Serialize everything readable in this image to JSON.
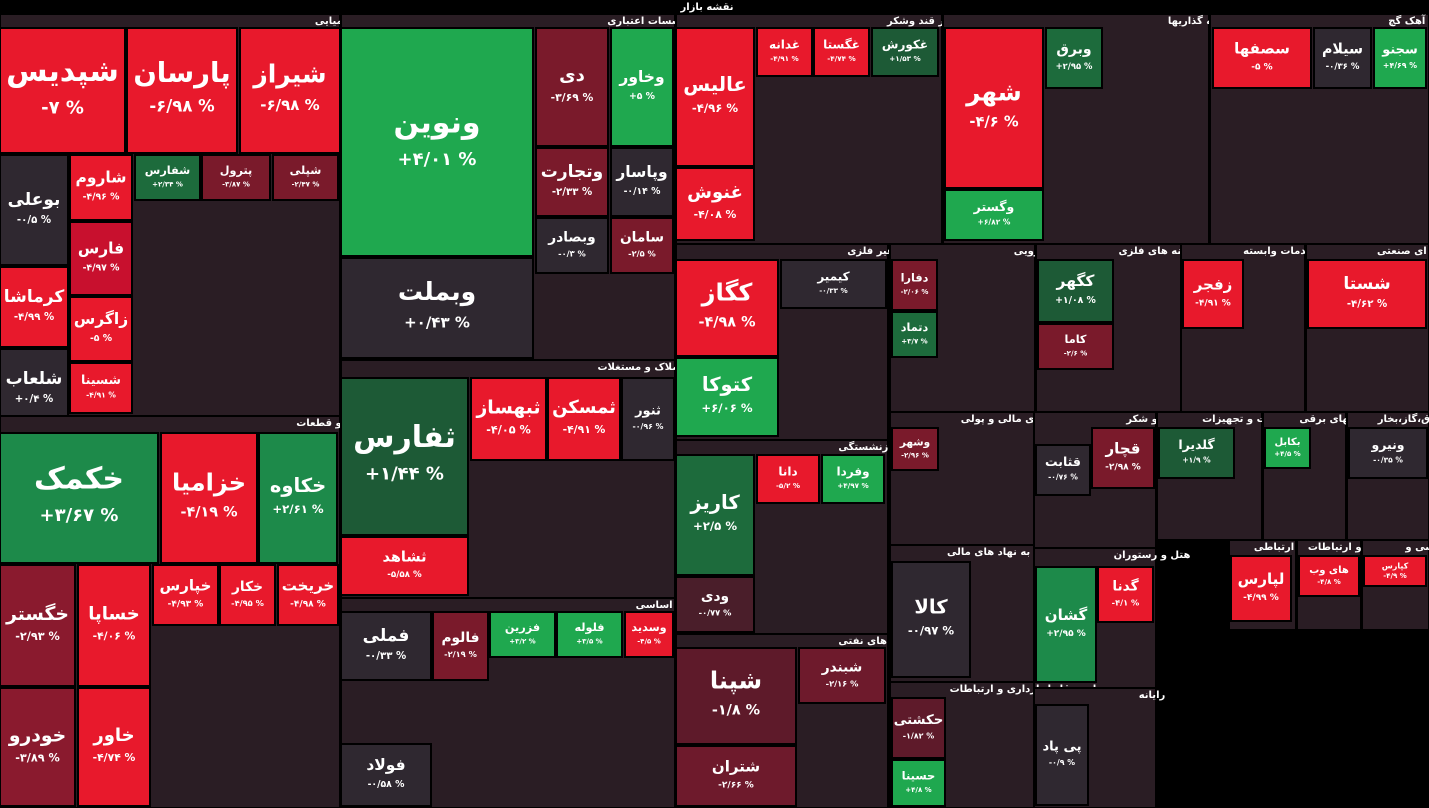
{
  "chart_data": {
    "type": "treemap",
    "title": "نقشه بازار",
    "sectors": [
      {
        "name": "شیمیایی",
        "tiles": [
          {
            "name": "شپدیس",
            "value": -7,
            "value_label": "-۷ %",
            "color": "#e8192c"
          },
          {
            "name": "پارسان",
            "value": -6.98,
            "value_label": "-۶/۹۸ %",
            "color": "#e8192c"
          },
          {
            "name": "شیراز",
            "value": -6.98,
            "value_label": "-۶/۹۸ %",
            "color": "#e8192c"
          },
          {
            "name": "بوعلی",
            "value": -0.5,
            "value_label": "-۰/۵ %",
            "color": "#2f2830"
          },
          {
            "name": "شاروم",
            "value": -4.96,
            "value_label": "-۴/۹۶ %",
            "color": "#e8192c"
          },
          {
            "name": "شفارس",
            "value": 2.34,
            "value_label": "+۲/۳۴ %",
            "color": "#1d6b3c"
          },
          {
            "name": "پترول",
            "value": -3.87,
            "value_label": "-۳/۸۷ %",
            "color": "#7a1a2b"
          },
          {
            "name": "شپلی",
            "value": -2.47,
            "value_label": "-۲/۴۷ %",
            "color": "#7a1a2b"
          },
          {
            "name": "فارس",
            "value": -4.97,
            "value_label": "-۴/۹۷ %",
            "color": "#c8102e"
          },
          {
            "name": "کرماشا",
            "value": -4.99,
            "value_label": "-۴/۹۹ %",
            "color": "#e8192c"
          },
          {
            "name": "شلعاب",
            "value": 0.4,
            "value_label": "+۰/۴ %",
            "color": "#2f2830"
          },
          {
            "name": "زاگرس",
            "value": -5,
            "value_label": "-۵ %",
            "color": "#e8192c"
          },
          {
            "name": "شسینا",
            "value": -4.91,
            "value_label": "-۴/۹۱ %",
            "color": "#e8192c"
          }
        ]
      },
      {
        "name": "خودرو و قطعات",
        "tiles": [
          {
            "name": "خکمک",
            "value": 3.67,
            "value_label": "+۳/۶۷ %",
            "color": "#1d8a4a"
          },
          {
            "name": "خزامیا",
            "value": -4.19,
            "value_label": "-۴/۱۹ %",
            "color": "#e8192c"
          },
          {
            "name": "خکاوه",
            "value": 2.61,
            "value_label": "+۲/۶۱ %",
            "color": "#1d8a4a"
          },
          {
            "name": "خگستر",
            "value": -2.93,
            "value_label": "-۲/۹۳ %",
            "color": "#8a1a2e"
          },
          {
            "name": "خساپا",
            "value": -4.06,
            "value_label": "-۴/۰۶ %",
            "color": "#e8192c"
          },
          {
            "name": "خودرو",
            "value": -3.89,
            "value_label": "-۳/۸۹ %",
            "color": "#8a1a2e"
          },
          {
            "name": "خاور",
            "value": -4.74,
            "value_label": "-۴/۷۴ %",
            "color": "#e8192c"
          },
          {
            "name": "خپارس",
            "value": -4.93,
            "value_label": "-۴/۹۳ %",
            "color": "#e8192c"
          },
          {
            "name": "خکار",
            "value": -4.95,
            "value_label": "-۴/۹۵ %",
            "color": "#e8192c"
          },
          {
            "name": "خریخت",
            "value": -4.98,
            "value_label": "-۴/۹۸ %",
            "color": "#e8192c"
          }
        ]
      },
      {
        "name": "بانکها و موسسات اعتباری",
        "tiles": [
          {
            "name": "ونوین",
            "value": 4.01,
            "value_label": "+۴/۰۱ %",
            "color": "#1fa84f"
          },
          {
            "name": "وبملت",
            "value": 0.43,
            "value_label": "+۰/۴۳ %",
            "color": "#2f2830"
          },
          {
            "name": "دی",
            "value": -3.69,
            "value_label": "-۳/۶۹ %",
            "color": "#7a1a2b"
          },
          {
            "name": "وخاور",
            "value": 5,
            "value_label": "+۵ %",
            "color": "#1fa84f"
          },
          {
            "name": "وتجارت",
            "value": -2.33,
            "value_label": "-۲/۳۳ %",
            "color": "#7a1a2b"
          },
          {
            "name": "وپاسار",
            "value": -0.14,
            "value_label": "-۰/۱۴ %",
            "color": "#2f2830"
          },
          {
            "name": "وبصادر",
            "value": -0.3,
            "value_label": "-۰/۳ %",
            "color": "#2f2830"
          },
          {
            "name": "سامان",
            "value": -2.5,
            "value_label": "-۲/۵ %",
            "color": "#7a1a2b"
          }
        ]
      },
      {
        "name": "انبوه سازی، املاک و مستغلات",
        "tiles": [
          {
            "name": "ثفارس",
            "value": 1.44,
            "value_label": "+۱/۴۴ %",
            "color": "#1d5a36"
          },
          {
            "name": "ثشاهد",
            "value": -5.58,
            "value_label": "-۵/۵۸ %",
            "color": "#e8192c"
          },
          {
            "name": "ثمسکن",
            "value": -4.91,
            "value_label": "-۴/۹۱ %",
            "color": "#e8192c"
          },
          {
            "name": "ثبهساز",
            "value": -4.05,
            "value_label": "-۴/۰۵ %",
            "color": "#e8192c"
          },
          {
            "name": "ثنور",
            "value": -0.96,
            "value_label": "-۰/۹۶ %",
            "color": "#2f2830"
          }
        ]
      },
      {
        "name": "فلزات اساسی",
        "tiles": [
          {
            "name": "فملی",
            "value": -0.33,
            "value_label": "-۰/۳۳ %",
            "color": "#2f2830"
          },
          {
            "name": "فولاد",
            "value": -0.58,
            "value_label": "-۰/۵۸ %",
            "color": "#2f2830"
          },
          {
            "name": "فالوم",
            "value": -2.19,
            "value_label": "-۲/۱۹ %",
            "color": "#7a1a2b"
          },
          {
            "name": "فزرین",
            "value": 3.2,
            "value_label": "+۳/۲ %",
            "color": "#1fa84f"
          },
          {
            "name": "فلوله",
            "value": 3.5,
            "value_label": "+۳/۵ %",
            "color": "#1fa84f"
          },
          {
            "name": "وسدید",
            "value": -4.5,
            "value_label": "-۴/۵ %",
            "color": "#e8192c"
          }
        ]
      },
      {
        "name": "غذایی بجز قند وشکر",
        "tiles": [
          {
            "name": "عالیس",
            "value": -4.96,
            "value_label": "-۴/۹۶ %",
            "color": "#e8192c"
          },
          {
            "name": "غنوش",
            "value": -4.08,
            "value_label": "-۴/۰۸ %",
            "color": "#e8192c"
          },
          {
            "name": "غدانه",
            "value": -4.91,
            "value_label": "-۴/۹۱ %",
            "color": "#e8192c"
          },
          {
            "name": "غگستا",
            "value": -4.74,
            "value_label": "-۴/۷۴ %",
            "color": "#e8192c"
          },
          {
            "name": "غکورش",
            "value": 1.53,
            "value_label": "+۱/۵۳ %",
            "color": "#1d5a36"
          }
        ]
      },
      {
        "name": "کانی غیر فلزی",
        "tiles": [
          {
            "name": "کگاز",
            "value": -4.98,
            "value_label": "-۴/۹۸ %",
            "color": "#e8192c"
          },
          {
            "name": "کتوکا",
            "value": 6.06,
            "value_label": "+۶/۰۶ %",
            "color": "#1fa84f"
          },
          {
            "name": "کیمیر",
            "value": -0.33,
            "value_label": "-۰/۳۳ %",
            "color": "#2f2830"
          }
        ]
      },
      {
        "name": "بیمه و بازنشستگی",
        "tiles": [
          {
            "name": "کاریز",
            "value": 2.5,
            "value_label": "+۲/۵ %",
            "color": "#1d6b3c"
          },
          {
            "name": "ودی",
            "value": -0.77,
            "value_label": "-۰/۷۷ %",
            "color": "#4a1e2a"
          },
          {
            "name": "دانا",
            "value": -5.2,
            "value_label": "-۵/۲ %",
            "color": "#e8192c"
          },
          {
            "name": "وفردا",
            "value": 4.97,
            "value_label": "+۴/۹۷ %",
            "color": "#1fa84f"
          }
        ]
      },
      {
        "name": "فرآورده های نفتی",
        "tiles": [
          {
            "name": "شپنا",
            "value": -1.8,
            "value_label": "-۱/۸ %",
            "color": "#5e1a2a"
          },
          {
            "name": "شتران",
            "value": -2.66,
            "value_label": "-۲/۶۶ %",
            "color": "#6e1a2c"
          },
          {
            "name": "شبندر",
            "value": -2.16,
            "value_label": "-۲/۱۶ %",
            "color": "#6e1a2c"
          }
        ]
      },
      {
        "name": "سرمایه گذاریها",
        "tiles": [
          {
            "name": "شهر",
            "value": -4.6,
            "value_label": "-۴/۶ %",
            "color": "#e8192c"
          },
          {
            "name": "وگستر",
            "value": 6.82,
            "value_label": "+۶/۸۲ %",
            "color": "#1fa84f"
          },
          {
            "name": "وبرق",
            "value": 2.95,
            "value_label": "+۲/۹۵ %",
            "color": "#1d6b3c"
          }
        ]
      },
      {
        "name": "سیمان آهک گچ",
        "tiles": [
          {
            "name": "سصفها",
            "value": -5,
            "value_label": "-۵ %",
            "color": "#e8192c"
          },
          {
            "name": "سیلام",
            "value": -0.36,
            "value_label": "-۰/۳۶ %",
            "color": "#2f2830"
          },
          {
            "name": "سجنو",
            "value": 4.69,
            "value_label": "+۴/۶۹ %",
            "color": "#1fa84f"
          }
        ]
      },
      {
        "name": "دارویی",
        "tiles": [
          {
            "name": "دفارا",
            "value": -2.06,
            "value_label": "-۲/۰۶ %",
            "color": "#7a1a2b"
          },
          {
            "name": "دتماد",
            "value": 3.7,
            "value_label": "+۳/۷ %",
            "color": "#1d6b3c"
          }
        ]
      },
      {
        "name": "استخراج کانه های فلزی",
        "tiles": [
          {
            "name": "کگهر",
            "value": 1.08,
            "value_label": "+۱/۰۸ %",
            "color": "#1d5a36"
          },
          {
            "name": "کاما",
            "value": -2.6,
            "value_label": "-۲/۶ %",
            "color": "#7a1a2b"
          }
        ]
      },
      {
        "name": "زراعت و خدمات وابسته",
        "tiles": [
          {
            "name": "زفجر",
            "value": -4.91,
            "value_label": "-۴/۹۱ %",
            "color": "#e8192c"
          }
        ]
      },
      {
        "name": "چندرشته ای صنعتی",
        "tiles": [
          {
            "name": "شستا",
            "value": -4.62,
            "value_label": "-۴/۶۲ %",
            "color": "#e8192c"
          }
        ]
      },
      {
        "name": "واسطه گریهای مالی و پولی",
        "tiles": [
          {
            "name": "وشهر",
            "value": -2.96,
            "value_label": "-۲/۹۶ %",
            "color": "#7a1a2b"
          }
        ]
      },
      {
        "name": "قند و شکر",
        "tiles": [
          {
            "name": "قچار",
            "value": -2.98,
            "value_label": "-۲/۹۸ %",
            "color": "#7a1a2b"
          },
          {
            "name": "قثابت",
            "value": -0.76,
            "value_label": "-۰/۷۶ %",
            "color": "#2f2830"
          }
        ]
      },
      {
        "name": "ماشین آلات و تجهیزات",
        "tiles": [
          {
            "name": "گلدیرا",
            "value": 1.9,
            "value_label": "+۱/۹ %",
            "color": "#1d5a36"
          }
        ]
      },
      {
        "name": "دستگاههای برقی",
        "tiles": [
          {
            "name": "بکابل",
            "value": 4.5,
            "value_label": "+۴/۵ %",
            "color": "#1fa84f"
          }
        ]
      },
      {
        "name": "عرضه برق،گاز،بخار",
        "tiles": [
          {
            "name": "ونیرو",
            "value": -0.35,
            "value_label": "-۰/۳۵ %",
            "color": "#2f2830"
          }
        ]
      },
      {
        "name": "فعالیتهای کمکی به نهاد های مالی",
        "tiles": [
          {
            "name": "کالا",
            "value": -0.97,
            "value_label": "-۰/۹۷ %",
            "color": "#2f2830"
          }
        ]
      },
      {
        "name": "هتل و رستوران",
        "tiles": [
          {
            "name": "گشان",
            "value": 2.95,
            "value_label": "+۲/۹۵ %",
            "color": "#1d8a4a"
          },
          {
            "name": "گدنا",
            "value": -4.1,
            "value_label": "-۴/۱ %",
            "color": "#e8192c"
          }
        ]
      },
      {
        "name": "حمل و نقل انبارداری و ارتباطات",
        "tiles": [
          {
            "name": "حکشتی",
            "value": -1.82,
            "value_label": "-۱/۸۲ %",
            "color": "#5e1a2a"
          },
          {
            "name": "حسینا",
            "value": 4.8,
            "value_label": "+۴/۸ %",
            "color": "#1fa84f"
          }
        ]
      },
      {
        "name": "رایانه",
        "tiles": [
          {
            "name": "پی پاد",
            "value": -0.9,
            "value_label": "-۰/۹ %",
            "color": "#2f2830"
          }
        ]
      },
      {
        "name": "وسایل ارتباطی",
        "tiles": [
          {
            "name": "لپارس",
            "value": -4.99,
            "value_label": "-۴/۹۹ %",
            "color": "#e8192c"
          }
        ]
      },
      {
        "name": "اطلاعات و ارتباطات",
        "tiles": [
          {
            "name": "های وب",
            "value": -4.8,
            "value_label": "-۴/۸ %",
            "color": "#e8192c"
          }
        ]
      },
      {
        "name": "کاشی و",
        "tiles": [
          {
            "name": "کپارس",
            "value": -4.9,
            "value_label": "-۴/۹ %",
            "color": "#e8192c"
          }
        ]
      }
    ]
  }
}
